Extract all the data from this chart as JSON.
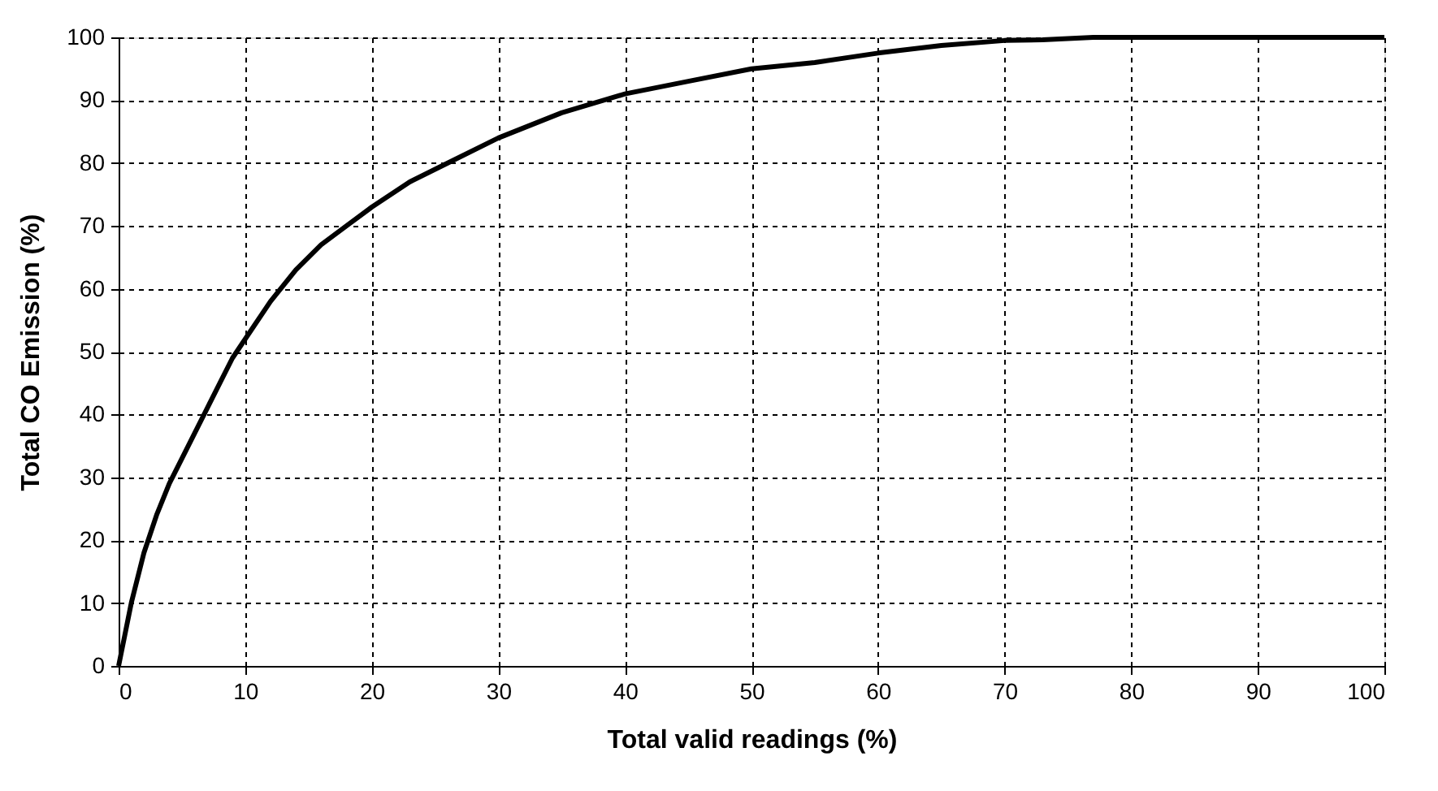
{
  "chart_data": {
    "type": "line",
    "xlabel": "Total valid readings (%)",
    "ylabel": "Total CO Emission (%)",
    "x": [
      0,
      1,
      2,
      3,
      4,
      5,
      6,
      7,
      8,
      9,
      10,
      12,
      14,
      16,
      18,
      20,
      23,
      26,
      30,
      35,
      40,
      45,
      50,
      55,
      60,
      65,
      70,
      73,
      77,
      100
    ],
    "series": [
      {
        "color": "#000000",
        "values": [
          0,
          10,
          18,
          24,
          29,
          33,
          37,
          41,
          45,
          49,
          52,
          58,
          63,
          67,
          70,
          73,
          77,
          80,
          84,
          88,
          91,
          93,
          95,
          96,
          97.5,
          98.7,
          99.5,
          99.6,
          100,
          100
        ]
      }
    ],
    "xlim": [
      0,
      100
    ],
    "ylim": [
      0,
      100
    ],
    "xticks": [
      0,
      10,
      20,
      30,
      40,
      50,
      60,
      70,
      80,
      90,
      100
    ],
    "yticks": [
      0,
      10,
      20,
      30,
      40,
      50,
      60,
      70,
      80,
      90,
      100
    ],
    "grid": true,
    "marker": "none",
    "line_style": "solid"
  }
}
